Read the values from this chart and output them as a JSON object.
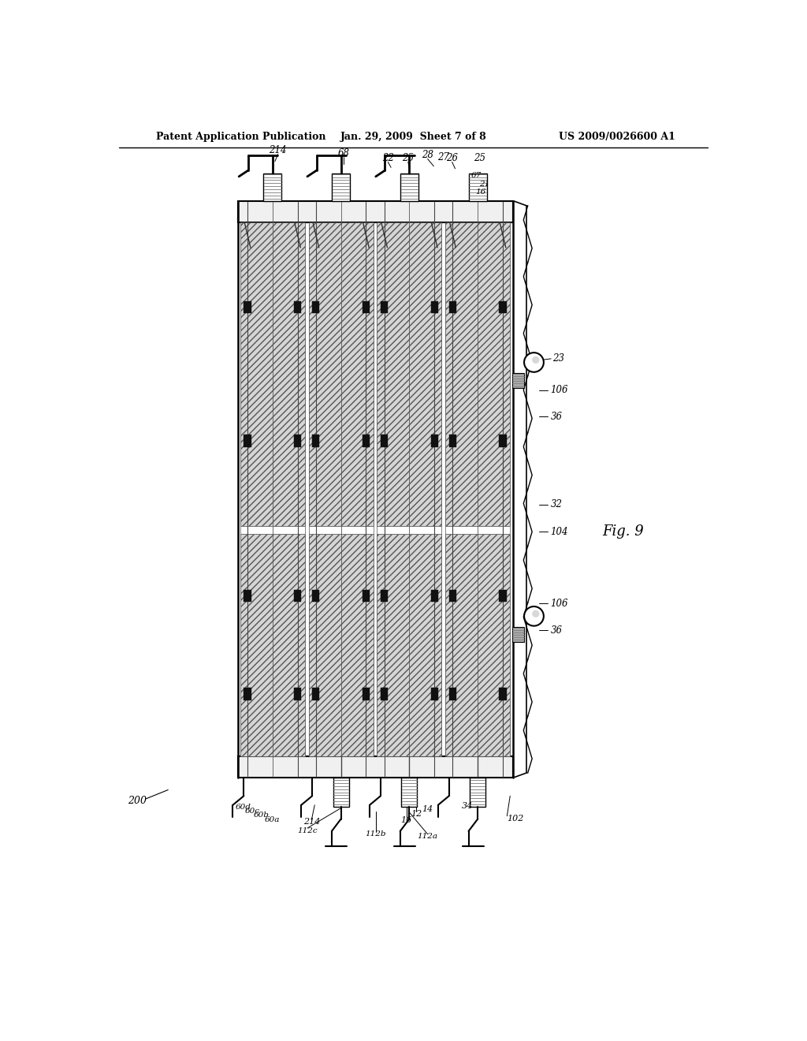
{
  "bg_color": "#ffffff",
  "header_left": "Patent Application Publication",
  "header_center": "Jan. 29, 2009  Sheet 7 of 8",
  "header_right": "US 2009/0026600 A1",
  "fig_label": "Fig. 9"
}
